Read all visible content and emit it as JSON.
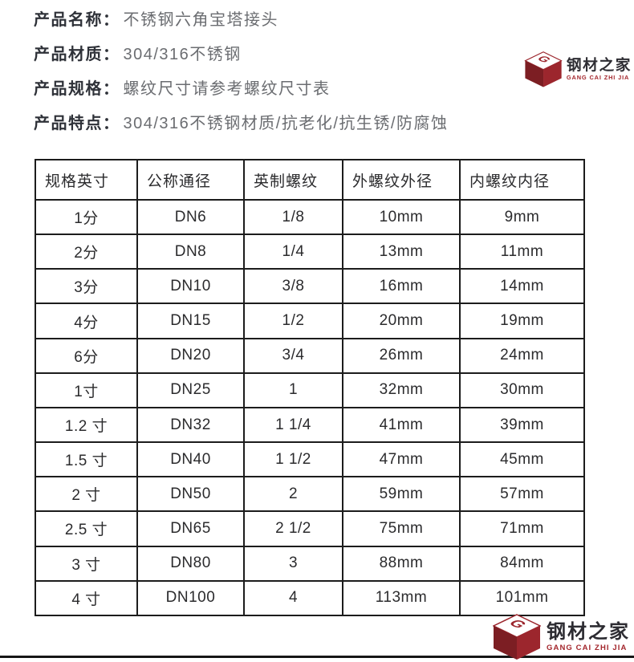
{
  "page": {
    "background": "#ffffff",
    "divider_color": "#161616"
  },
  "product_info": {
    "items": [
      {
        "label": "产品名称：",
        "value": "不锈钢六角宝塔接头"
      },
      {
        "label": "产品材质：",
        "value": "304/316不锈钢"
      },
      {
        "label": "产品规格：",
        "value": "螺纹尺寸请参考螺纹尺寸表"
      },
      {
        "label": "产品特点：",
        "value": "304/316不锈钢材质/抗老化/抗生锈/防腐蚀"
      }
    ]
  },
  "spec_table": {
    "headers": [
      "规格英寸",
      "公称通径",
      "英制螺纹",
      "外螺纹外径",
      "内螺纹内径"
    ],
    "rows": [
      [
        "1分",
        "DN6",
        "1/8",
        "10mm",
        "9mm"
      ],
      [
        "2分",
        "DN8",
        "1/4",
        "13mm",
        "11mm"
      ],
      [
        "3分",
        "DN10",
        "3/8",
        "16mm",
        "14mm"
      ],
      [
        "4分",
        "DN15",
        "1/2",
        "20mm",
        "19mm"
      ],
      [
        "6分",
        "DN20",
        "3/4",
        "26mm",
        "24mm"
      ],
      [
        "1寸",
        "DN25",
        "1",
        "32mm",
        "30mm"
      ],
      [
        "1.2 寸",
        "DN32",
        "1 1/4",
        "41mm",
        "39mm"
      ],
      [
        "1.5 寸",
        "DN40",
        "1 1/2",
        "47mm",
        "45mm"
      ],
      [
        "2 寸",
        "DN50",
        "2",
        "59mm",
        "57mm"
      ],
      [
        "2.5 寸",
        "DN65",
        "2 1/2",
        "75mm",
        "71mm"
      ],
      [
        "3 寸",
        "DN80",
        "3",
        "88mm",
        "84mm"
      ],
      [
        "4 寸",
        "DN100",
        "4",
        "113mm",
        "101mm"
      ]
    ]
  },
  "logo": {
    "initial": "G",
    "name_cn": "钢材之家",
    "name_en": "GANG CAI ZHI JIA",
    "colors": {
      "cube_left": "#7c1e23",
      "cube_right": "#9c262d",
      "accent_red": "#a3262c",
      "text_dark": "#2d2c32"
    }
  }
}
